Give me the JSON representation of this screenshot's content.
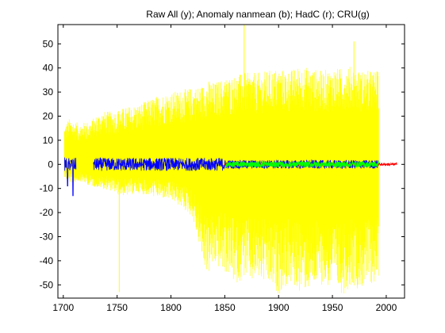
{
  "chart_data": {
    "type": "line",
    "title": "Raw All (y); Anomaly nanmean (b); HadC (r); CRU(g)",
    "xlabel": "",
    "ylabel": "",
    "xlim": [
      1695,
      2017
    ],
    "ylim": [
      -55.5,
      58
    ],
    "xticks": [
      1700,
      1750,
      1800,
      1850,
      1900,
      1950,
      2000
    ],
    "yticks": [
      -50,
      -40,
      -30,
      -20,
      -10,
      0,
      10,
      20,
      30,
      40,
      50
    ],
    "grid": false,
    "series": [
      {
        "name": "Raw All",
        "color": "#ffff00",
        "style": "envelope",
        "x": [
          1701,
          1705,
          1715,
          1725,
          1735,
          1745,
          1752,
          1760,
          1770,
          1780,
          1790,
          1800,
          1810,
          1820,
          1830,
          1835,
          1840,
          1850,
          1860,
          1868,
          1875,
          1880,
          1890,
          1900,
          1910,
          1920,
          1930,
          1940,
          1950,
          1960,
          1968,
          1975,
          1985,
          1993
        ],
        "upper": [
          16,
          19,
          17,
          18,
          22,
          22,
          23,
          24,
          25,
          27,
          29,
          30,
          31,
          32,
          33,
          35,
          34,
          36,
          37,
          38,
          38,
          38,
          39,
          40,
          39,
          41,
          40,
          39,
          40,
          40,
          41,
          39,
          39,
          39
        ],
        "lower": [
          -5,
          -8,
          -7,
          -9,
          -10,
          -11,
          -13,
          -13,
          -12,
          -13,
          -14,
          -15,
          -18,
          -22,
          -42,
          -46,
          -42,
          -45,
          -50,
          -47,
          -50,
          -48,
          -51,
          -54,
          -50,
          -53,
          -52,
          -50,
          -52,
          -54,
          -50,
          -52,
          -50,
          -49
        ],
        "spikes": [
          {
            "x": 1752,
            "y": -53
          },
          {
            "x": 1868,
            "y": 58
          },
          {
            "x": 1970,
            "y": 51
          }
        ]
      },
      {
        "name": "Anomaly nanmean",
        "color": "#0000ff",
        "style": "noisy",
        "x_start": 1701,
        "x_end": 1993,
        "gaps": [
          [
            1712,
            1728
          ]
        ],
        "dips": [
          {
            "x": 1709,
            "y": -13
          },
          {
            "x": 1704,
            "y": -9
          }
        ]
      },
      {
        "name": "HadC",
        "color": "#ff0000",
        "style": "noisy",
        "x_start": 1850,
        "x_end": 2010
      },
      {
        "name": "CRU",
        "color": "#00ff00",
        "style": "noisy",
        "x_start": 1851,
        "x_end": 1993
      }
    ]
  }
}
